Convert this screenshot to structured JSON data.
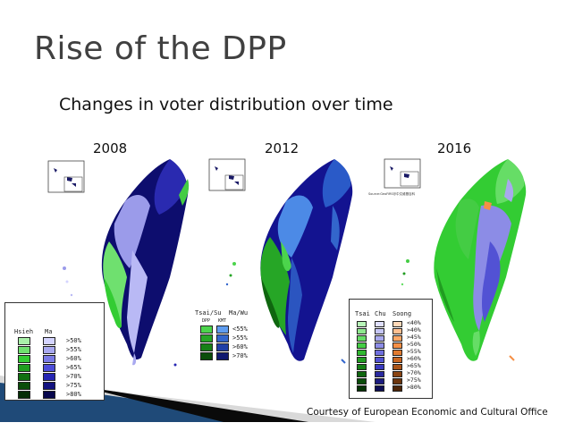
{
  "slide": {
    "title": "Rise of the DPP",
    "subtitle": "Changes in voter distribution over time",
    "credit": "Courtesy of European Economic and Cultural Office"
  },
  "maps": [
    {
      "year": "2008",
      "legend": {
        "col_a": "Hsieh",
        "col_b": "Ma",
        "rows": [
          ">50%",
          ">55%",
          ">60%",
          ">65%",
          ">70%",
          ">75%",
          ">80%"
        ],
        "green": [
          "#a8f0a8",
          "#6fe06f",
          "#33cc33",
          "#1f9e1f",
          "#117011",
          "#0a4d0a",
          "#052e05"
        ],
        "blue": [
          "#d4d4ff",
          "#a9a9f0",
          "#7b7be6",
          "#4d4dd9",
          "#2626b3",
          "#131380",
          "#07074d"
        ]
      }
    },
    {
      "year": "2012",
      "legend": {
        "col_a": "Tsai/Su",
        "col_b": "Ma/Wu",
        "sub_a": "DPP",
        "sub_b": "KMT",
        "rows": [
          "<55%",
          ">55%",
          ">60%",
          ">70%"
        ],
        "green": [
          "#4cd44c",
          "#26a626",
          "#178017",
          "#0a4d0a"
        ],
        "blue": [
          "#5f9df0",
          "#3366cc",
          "#1f3fa6",
          "#101a70"
        ]
      }
    },
    {
      "year": "2016",
      "source_note": "Source:GeoFiRS@中文維基百科",
      "legend": {
        "col_a": "Tsai",
        "col_b": "Chu",
        "col_c": "Soong",
        "rows": [
          "<40%",
          ">40%",
          ">45%",
          ">50%",
          ">55%",
          ">60%",
          ">65%",
          ">70%",
          ">75%",
          ">80%"
        ],
        "green": [
          "#b8f5b8",
          "#8ee88e",
          "#66dd66",
          "#44cc44",
          "#2fb82f",
          "#219c21",
          "#178017",
          "#0f660f",
          "#0a4d0a",
          "#053305"
        ],
        "blue": [
          "#e0e0ff",
          "#c6c6f5",
          "#a9a9ee",
          "#8c8ce6",
          "#6f6fdd",
          "#5252d4",
          "#3a3ac0",
          "#2a2aa0",
          "#1c1c80",
          "#0e0e55"
        ],
        "orange": [
          "#ffd8b8",
          "#ffbf90",
          "#ffa766",
          "#f58f45",
          "#e07a30",
          "#c86520",
          "#aa5418",
          "#8a4412",
          "#6b340c",
          "#4d2508"
        ]
      }
    }
  ],
  "colors": {
    "title": "#404040",
    "accent_bar": "#1f4a78"
  }
}
